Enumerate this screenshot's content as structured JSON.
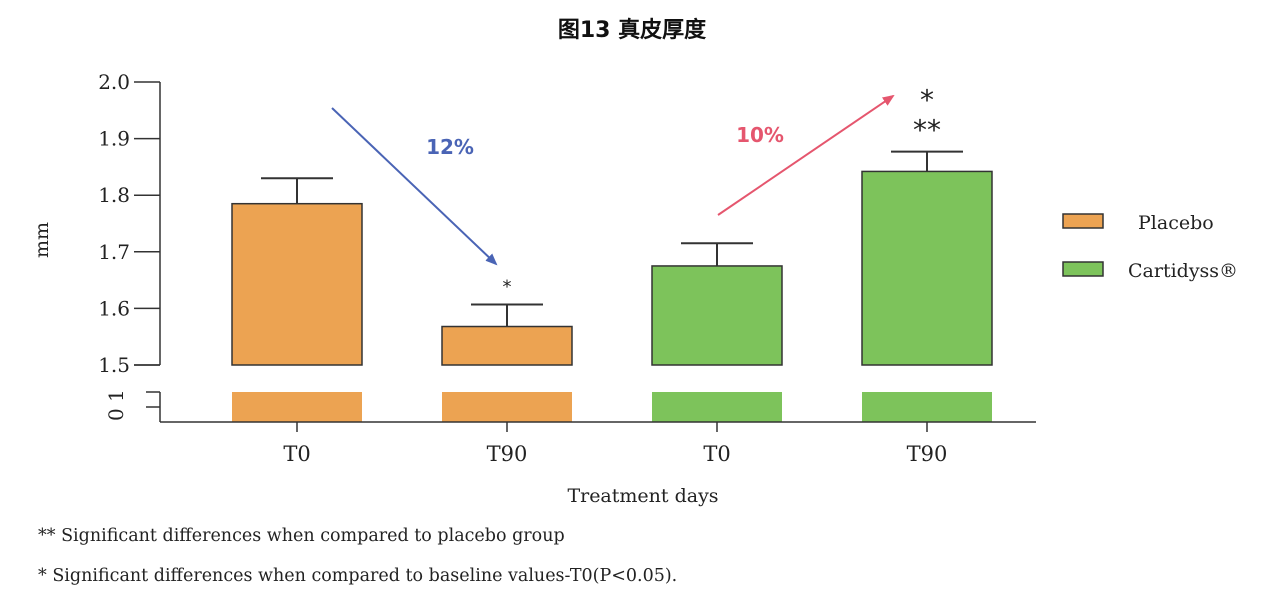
{
  "chart_data": {
    "type": "bar",
    "title": "图13 真皮厚度",
    "xlabel": "Treatment days",
    "ylabel": "mm",
    "categories": [
      "T0",
      "T90",
      "T0",
      "T90"
    ],
    "groups": [
      "Placebo",
      "Placebo",
      "Cartidyss®",
      "Cartidyss®"
    ],
    "values": [
      1.785,
      1.568,
      1.675,
      1.842
    ],
    "error_upper": [
      1.83,
      1.607,
      1.715,
      1.877
    ],
    "significance": [
      "",
      "*",
      "",
      "*\n**"
    ],
    "series": [
      {
        "name": "Placebo",
        "color": "#ECA352"
      },
      {
        "name": "Cartidyss®",
        "color": "#7DC35B"
      }
    ],
    "ylim": [
      1.5,
      2.0
    ],
    "yticks": [
      "1.5",
      "1.6",
      "1.7",
      "1.8",
      "1.9",
      "2.0"
    ],
    "broken_axis_ticks": [
      "0",
      "1"
    ],
    "legend_position": "right",
    "annotations": [
      {
        "text": "12%",
        "color": "#4A64B5",
        "direction": "decrease"
      },
      {
        "text": "10%",
        "color": "#E5566E",
        "direction": "increase"
      }
    ],
    "footnotes": [
      "** Significant differences when compared to placebo group",
      "* Significant differences when compared to baseline values-T0(P<0.05)."
    ],
    "grid": false
  }
}
